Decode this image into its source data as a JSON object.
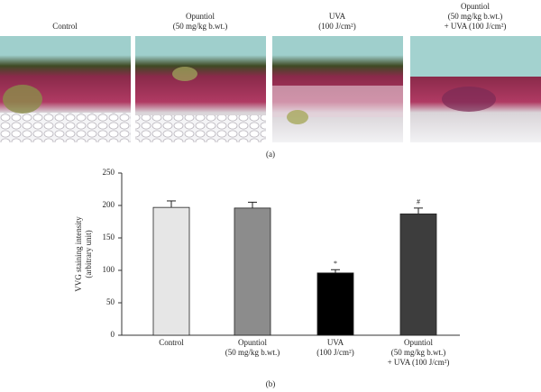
{
  "figure": {
    "panels": [
      [
        "Control"
      ],
      [
        "Opuntiol",
        "(50 mg/kg b.wt.)"
      ],
      [
        "UVA",
        "(100 J/cm²)"
      ],
      [
        "Opuntiol",
        "(50 mg/kg b.wt.)",
        "+ UVA (100 J/cm²)"
      ]
    ],
    "panel_label": "(a)"
  },
  "chart_data": {
    "type": "bar",
    "panel_label": "(b)",
    "ylabel": [
      "VVG staining intensity",
      "(arbitrary unit)"
    ],
    "categories": [
      [
        "Control"
      ],
      [
        "Opuntiol",
        "(50 mg/kg b.wt.)"
      ],
      [
        "UVA",
        "(100 J/cm²)"
      ],
      [
        "Opuntiol",
        "(50 mg/kg b.wt.)",
        "+ UVA (100 J/cm²)"
      ]
    ],
    "values": [
      197,
      196,
      96,
      187
    ],
    "errors": [
      10,
      9,
      5,
      9
    ],
    "marker_labels": [
      null,
      null,
      "*",
      "#"
    ],
    "colors": [
      "#e6e6e6",
      "#8c8c8c",
      "#000000",
      "#3d3d3d"
    ],
    "ylim": [
      0,
      250
    ],
    "yticks": [
      0,
      50,
      100,
      150,
      200,
      250
    ]
  }
}
